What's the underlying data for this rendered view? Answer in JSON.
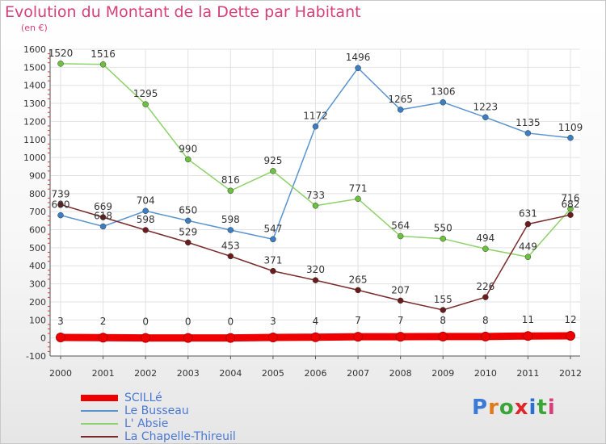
{
  "header": {
    "title": "Evolution du Montant de la Dette par Habitant",
    "subtitle": "(en €)"
  },
  "logo": {
    "text": "Proxiti",
    "letter_colors": [
      "#3a7ad6",
      "#e07a1a",
      "#3aa63a",
      "#e0262a",
      "#2b6fd6",
      "#3aa63a",
      "#d6407a"
    ]
  },
  "chart_data": {
    "type": "line",
    "title": "Evolution du Montant de la Dette par Habitant",
    "subtitle": "(en €)",
    "x": [
      "2000",
      "2001",
      "2002",
      "2003",
      "2004",
      "2005",
      "2006",
      "2007",
      "2008",
      "2009",
      "2010",
      "2011",
      "2012"
    ],
    "ylim": [
      -100,
      1600
    ],
    "yticks": [
      -100,
      0,
      100,
      200,
      300,
      400,
      500,
      600,
      700,
      800,
      900,
      1000,
      1100,
      1200,
      1300,
      1400,
      1500,
      1600
    ],
    "grid": true,
    "legend_position": "bottom-left",
    "series": [
      {
        "name": "SCILLé",
        "color": "#ee0000",
        "thick": true,
        "values": [
          3,
          2,
          0,
          0,
          0,
          3,
          4,
          7,
          7,
          8,
          8,
          11,
          12
        ],
        "labels": [
          "3",
          "2",
          "0",
          "0",
          "0",
          "3",
          "4",
          "7",
          "7",
          "8",
          "8",
          "11",
          "12"
        ]
      },
      {
        "name": "Le Busseau",
        "color": "#5a94d0",
        "dot": "#3a7ec4",
        "values": [
          680,
          618,
          704,
          650,
          598,
          547,
          1172,
          1496,
          1265,
          1306,
          1223,
          1135,
          1109
        ],
        "labels": [
          "680",
          "618",
          "704",
          "650",
          "598",
          "547",
          "1172",
          "1496",
          "1265",
          "1306",
          "1223",
          "1135",
          "1109"
        ]
      },
      {
        "name": "L' Absie",
        "color": "#8ed26a",
        "dot": "#6cc13e",
        "values": [
          1520,
          1516,
          1295,
          990,
          816,
          925,
          733,
          771,
          564,
          550,
          494,
          449,
          716
        ],
        "labels": [
          "1520",
          "1516",
          "1295",
          "990",
          "816",
          "925",
          "733",
          "771",
          "564",
          "550",
          "494",
          "449",
          "716"
        ]
      },
      {
        "name": "La Chapelle-Thireuil",
        "color": "#7a2a2a",
        "dot": "#6a1c1c",
        "values": [
          739,
          669,
          598,
          529,
          453,
          371,
          320,
          265,
          207,
          155,
          226,
          631,
          682
        ],
        "labels": [
          "739",
          "669",
          "598",
          "529",
          "453",
          "371",
          "320",
          "265",
          "207",
          "155",
          "226",
          "631",
          "682"
        ]
      }
    ]
  }
}
